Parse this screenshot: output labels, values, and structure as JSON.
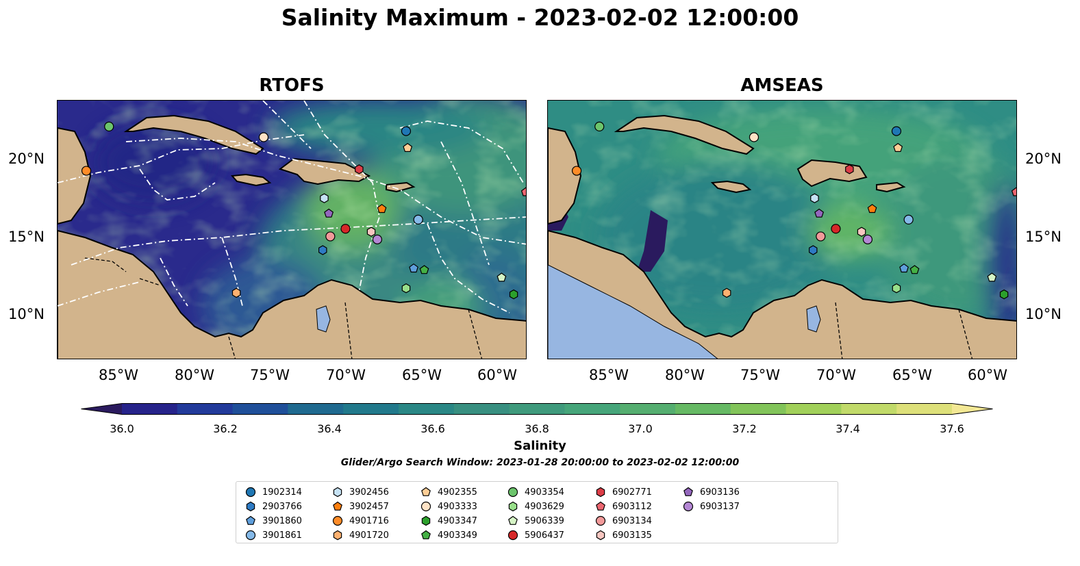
{
  "title": "Salinity Maximum - 2023-02-02 12:00:00",
  "panels": [
    {
      "title": "RTOFS"
    },
    {
      "title": "AMSEAS"
    }
  ],
  "map_extent": {
    "lon": [
      -89,
      -58
    ],
    "lat": [
      7,
      24
    ]
  },
  "lon_ticks": [
    "85°W",
    "80°W",
    "75°W",
    "70°W",
    "65°W",
    "60°W"
  ],
  "lat_ticks": [
    "20°N",
    "15°N",
    "10°N"
  ],
  "colorbar": {
    "label": "Salinity",
    "ticks": [
      "36.0",
      "36.2",
      "36.4",
      "36.6",
      "36.8",
      "37.0",
      "37.2",
      "37.4",
      "37.6"
    ],
    "range": [
      36.0,
      37.6
    ],
    "extend": "both",
    "colormap": [
      "#2a1a5e",
      "#26238a",
      "#223a9a",
      "#1f4f99",
      "#1f6a8f",
      "#21798b",
      "#2a8785",
      "#388f80",
      "#3f9a7c",
      "#46a57a",
      "#55ae70",
      "#66b964",
      "#82c45a",
      "#a1d05a",
      "#c1da6a",
      "#dde07a",
      "#f3e894"
    ]
  },
  "caption": "Glider/Argo Search Window: 2023-01-28 20:00:00 to 2023-02-02 12:00:00",
  "colors": {
    "land": "#d2b48c",
    "lake": "#97b6e1",
    "route": "#ffffff"
  },
  "legend": {
    "items": [
      {
        "label": "1902314",
        "marker": "circle",
        "color": "#1f77b4"
      },
      {
        "label": "2903766",
        "marker": "hexagon",
        "color": "#2e7bc4"
      },
      {
        "label": "3901860",
        "marker": "pentagon",
        "color": "#5f9fdc"
      },
      {
        "label": "3901861",
        "marker": "circle",
        "color": "#85b9e8"
      },
      {
        "label": "3902456",
        "marker": "hexagon",
        "color": "#c6e2f5"
      },
      {
        "label": "3902457",
        "marker": "pentagon",
        "color": "#ff7f0e"
      },
      {
        "label": "4901716",
        "marker": "circle",
        "color": "#ff8c28"
      },
      {
        "label": "4901720",
        "marker": "hexagon",
        "color": "#ffb170"
      },
      {
        "label": "4902355",
        "marker": "pentagon",
        "color": "#ffce96"
      },
      {
        "label": "4903333",
        "marker": "circle",
        "color": "#ffe3c6"
      },
      {
        "label": "4903347",
        "marker": "hexagon",
        "color": "#2ca02c"
      },
      {
        "label": "4903349",
        "marker": "pentagon",
        "color": "#45b045"
      },
      {
        "label": "4903354",
        "marker": "circle",
        "color": "#6cc56c"
      },
      {
        "label": "4903629",
        "marker": "hexagon",
        "color": "#98df8a"
      },
      {
        "label": "5906339",
        "marker": "pentagon",
        "color": "#d6f5c6"
      },
      {
        "label": "5906437",
        "marker": "circle",
        "color": "#d62728"
      },
      {
        "label": "6902771",
        "marker": "hexagon",
        "color": "#dc3d47"
      },
      {
        "label": "6903112",
        "marker": "pentagon",
        "color": "#eb6670"
      },
      {
        "label": "6903134",
        "marker": "circle",
        "color": "#f29a9a"
      },
      {
        "label": "6903135",
        "marker": "hexagon",
        "color": "#f7c6c0"
      },
      {
        "label": "6903136",
        "marker": "pentagon",
        "color": "#9467bd"
      },
      {
        "label": "6903137",
        "marker": "circle",
        "color": "#b487d4"
      }
    ]
  },
  "floats": [
    {
      "id": "1902314",
      "lon": -66.0,
      "lat": 22.0
    },
    {
      "id": "2903766",
      "lon": -71.5,
      "lat": 14.2
    },
    {
      "id": "3901860",
      "lon": -65.5,
      "lat": 13.0
    },
    {
      "id": "3901861",
      "lon": -65.2,
      "lat": 16.2
    },
    {
      "id": "3902456",
      "lon": -71.4,
      "lat": 17.6
    },
    {
      "id": "3902457",
      "lon": -67.6,
      "lat": 16.9
    },
    {
      "id": "4901716",
      "lon": -87.1,
      "lat": 19.4
    },
    {
      "id": "4901720",
      "lon": -77.2,
      "lat": 11.4
    },
    {
      "id": "4902355",
      "lon": -65.9,
      "lat": 20.9
    },
    {
      "id": "4903333",
      "lon": -75.4,
      "lat": 21.6
    },
    {
      "id": "4903347",
      "lon": -58.9,
      "lat": 11.3
    },
    {
      "id": "4903349",
      "lon": -64.8,
      "lat": 12.9
    },
    {
      "id": "4903354",
      "lon": -85.6,
      "lat": 22.3
    },
    {
      "id": "4903629",
      "lon": -66.0,
      "lat": 11.7
    },
    {
      "id": "5906339",
      "lon": -59.7,
      "lat": 12.4
    },
    {
      "id": "5906437",
      "lon": -70.0,
      "lat": 15.6
    },
    {
      "id": "6902771",
      "lon": -69.1,
      "lat": 19.5
    },
    {
      "id": "6903112",
      "lon": -58.1,
      "lat": 18.0
    },
    {
      "id": "6903134",
      "lon": -71.0,
      "lat": 15.1
    },
    {
      "id": "6903135",
      "lon": -68.3,
      "lat": 15.4
    },
    {
      "id": "6903136",
      "lon": -71.1,
      "lat": 16.6
    },
    {
      "id": "6903137",
      "lon": -67.9,
      "lat": 14.9
    }
  ]
}
